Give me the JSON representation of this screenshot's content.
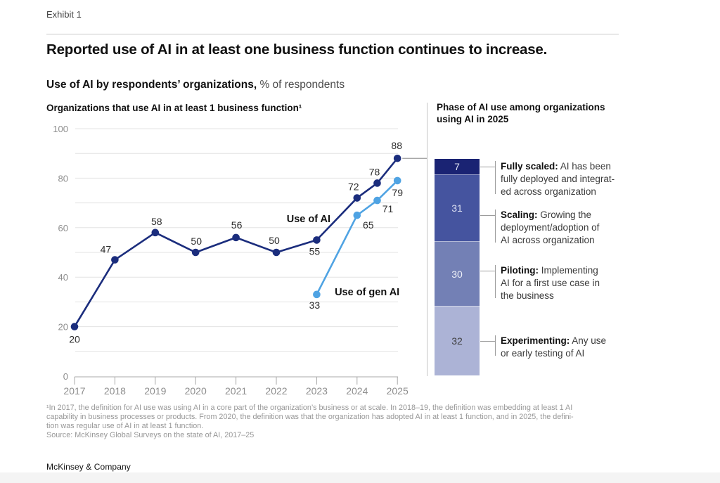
{
  "page": {
    "exhibit_label": "Exhibit 1",
    "title": "Reported use of AI in at least one business function continues to increase.",
    "subtitle_bold": "Use of AI by respondents’ organizations,",
    "subtitle_regular": " % of respondents",
    "brand": "McKinsey & Company"
  },
  "footnote": {
    "lines": [
      "¹In 2017, the definition for AI use was using AI in a core part of the organization’s business or at scale. In 2018–19, the definition was embedding at least 1 AI",
      "capability in business processes or products. From 2020, the definition was that the organization has adopted AI in at least 1 function, and in 2025, the defini-",
      "tion was regular use of AI in at least 1 function."
    ],
    "source": "Source: McKinsey Global Surveys on the state of AI, 2017–25"
  },
  "colors": {
    "use_of_ai": "#1b2d7d",
    "use_of_gen_ai": "#4fa3e3",
    "grid": "#e3e3e3",
    "axis": "#a8a8a8",
    "tick_label": "#8d8d8d",
    "point_label": "#2d2d2d",
    "connector": "#9c9c9c"
  },
  "chart_data": [
    {
      "type": "line",
      "title": "Organizations that use AI in at least 1 business function¹",
      "ylabel": "% of respondents",
      "ylim": [
        0,
        100
      ],
      "yticks": [
        0,
        20,
        40,
        60,
        80,
        100
      ],
      "grid_step": 10,
      "xticks": [
        2017,
        2018,
        2019,
        2020,
        2021,
        2022,
        2023,
        2024,
        2025
      ],
      "series": [
        {
          "name": "Use of AI",
          "color": "#1b2d7d",
          "x": [
            2017,
            2018,
            2019,
            2020,
            2021,
            2022,
            2023,
            2024,
            2024.5,
            2025
          ],
          "values": [
            20,
            47,
            58,
            50,
            56,
            50,
            55,
            72,
            78,
            88
          ],
          "label_offsets": [
            [
              0,
              23
            ],
            [
              -13,
              -10
            ],
            [
              2,
              -11
            ],
            [
              1,
              -11
            ],
            [
              1,
              -13
            ],
            [
              -3,
              -12
            ],
            [
              -3,
              21
            ],
            [
              -5,
              -11
            ],
            [
              -4,
              -11
            ],
            [
              -1,
              -13
            ]
          ]
        },
        {
          "name": "Use of gen AI",
          "color": "#4fa3e3",
          "x": [
            2023,
            2024,
            2024.5,
            2025
          ],
          "values": [
            33,
            65,
            71,
            79
          ],
          "label_offsets": [
            [
              -3,
              20
            ],
            [
              16,
              19
            ],
            [
              15,
              17
            ],
            [
              0,
              22
            ]
          ]
        }
      ],
      "annotations": [
        {
          "text": "Use of AI",
          "x": 2022.8,
          "y": 62.2
        },
        {
          "text": "Use of gen AI",
          "x": 2024.25,
          "y": 32.7
        }
      ],
      "connector_to_bar": true
    },
    {
      "type": "bar-stacked",
      "title": "Phase of AI use among organizations using AI in 2025",
      "segments": [
        {
          "value": 7,
          "color": "#1a2373",
          "number_color": "#dde1f2",
          "term": "Fully scaled:",
          "desc_lines": [
            "AI has been",
            "fully deployed and integrat-",
            "ed across organization"
          ]
        },
        {
          "value": 31,
          "color": "#45549f",
          "number_color": "#dde1f2",
          "term": "Scaling:",
          "desc_lines": [
            "Growing the",
            "deployment/adoption of",
            "AI across organization"
          ]
        },
        {
          "value": 30,
          "color": "#7380b5",
          "number_color": "#eef0f8",
          "term": "Piloting:",
          "desc_lines": [
            "Implementing",
            "AI for a first use case in",
            "the business"
          ]
        },
        {
          "value": 32,
          "color": "#acb3d6",
          "number_color": "#3d3d3d",
          "term": "Experimenting:",
          "desc_lines": [
            "Any use",
            "or early testing of AI"
          ]
        }
      ]
    }
  ]
}
